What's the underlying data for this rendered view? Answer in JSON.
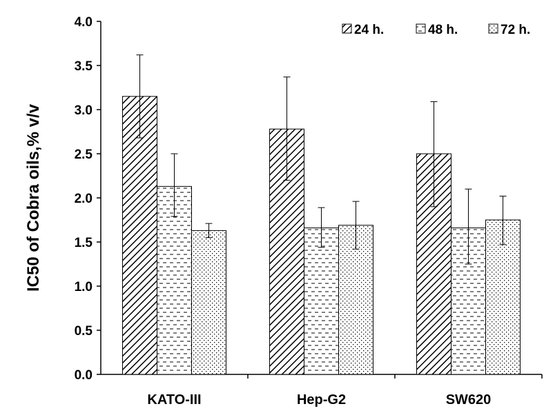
{
  "chart_data": {
    "type": "bar",
    "title": "",
    "xlabel": "",
    "ylabel": "IC50 of Cobra oils,% v/v",
    "ylim": [
      0,
      4.0
    ],
    "yticks": [
      "0.0",
      "0.5",
      "1.0",
      "1.5",
      "2.0",
      "2.5",
      "3.0",
      "3.5",
      "4.0"
    ],
    "grid": false,
    "legend_position": "top-right",
    "categories": [
      "KATO-III",
      "Hep-G2",
      "SW620"
    ],
    "series": [
      {
        "name": "24 h.",
        "pattern": "diagonal-hatch",
        "values": [
          3.15,
          2.78,
          2.5
        ],
        "error_low": [
          2.68,
          2.2,
          1.9
        ],
        "error_high": [
          3.62,
          3.37,
          3.09
        ]
      },
      {
        "name": "48 h.",
        "pattern": "horizontal-dash",
        "values": [
          2.13,
          1.66,
          1.66
        ],
        "error_low": [
          1.79,
          1.44,
          1.25
        ],
        "error_high": [
          2.5,
          1.89,
          2.1
        ]
      },
      {
        "name": "72 h.",
        "pattern": "dots",
        "values": [
          1.63,
          1.69,
          1.75
        ],
        "error_low": [
          1.55,
          1.42,
          1.47
        ],
        "error_high": [
          1.71,
          1.96,
          2.02
        ]
      }
    ]
  }
}
